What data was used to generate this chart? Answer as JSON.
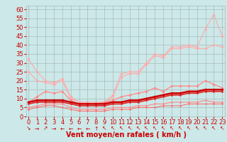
{
  "background_color": "#cce8e8",
  "grid_color": "#aabbbb",
  "xlabel": "Vent moyen/en rafales ( km/h )",
  "ylim": [
    0,
    62
  ],
  "xlim": [
    -0.3,
    23.3
  ],
  "yticks": [
    0,
    5,
    10,
    15,
    20,
    25,
    30,
    35,
    40,
    45,
    50,
    55,
    60
  ],
  "xticks": [
    0,
    1,
    2,
    3,
    4,
    5,
    6,
    7,
    8,
    9,
    10,
    11,
    12,
    13,
    14,
    15,
    16,
    17,
    18,
    19,
    20,
    21,
    22,
    23
  ],
  "series": [
    {
      "y": [
        32,
        25,
        20,
        19,
        21,
        11,
        8,
        8,
        8,
        8,
        12,
        24,
        25,
        25,
        30,
        35,
        34,
        39,
        39,
        40,
        39,
        49,
        57,
        45
      ],
      "color": "#ffaaaa",
      "lw": 0.8,
      "marker": "D",
      "ms": 1.8
    },
    {
      "y": [
        25,
        20,
        19,
        18,
        20,
        10,
        8,
        7,
        7,
        7,
        11,
        22,
        24,
        24,
        29,
        34,
        33,
        38,
        38,
        39,
        38,
        38,
        40,
        39
      ],
      "color": "#ffaaaa",
      "lw": 0.8,
      "marker": "D",
      "ms": 1.8
    },
    {
      "y": [
        8,
        11,
        14,
        13,
        14,
        9,
        7,
        7,
        7,
        8,
        9,
        11,
        12,
        13,
        14,
        16,
        14,
        17,
        17,
        17,
        17,
        20,
        18,
        16
      ],
      "color": "#ff8888",
      "lw": 0.9,
      "marker": "D",
      "ms": 1.8
    },
    {
      "y": [
        8,
        9,
        9,
        9,
        9,
        8,
        7,
        7,
        7,
        7,
        8,
        8,
        9,
        9,
        10,
        11,
        12,
        13,
        13,
        14,
        14,
        15,
        15,
        15
      ],
      "color": "#cc0000",
      "lw": 1.8,
      "marker": "D",
      "ms": 1.8
    },
    {
      "y": [
        7,
        8,
        8,
        8,
        8,
        7,
        6,
        6,
        6,
        6,
        7,
        7,
        8,
        8,
        9,
        10,
        11,
        12,
        12,
        13,
        13,
        14,
        14,
        14
      ],
      "color": "#dd2222",
      "lw": 1.2,
      "marker": "D",
      "ms": 1.5
    },
    {
      "y": [
        5,
        6,
        7,
        7,
        7,
        5,
        4,
        4,
        4,
        4,
        5,
        5,
        5,
        6,
        6,
        7,
        7,
        8,
        8,
        8,
        8,
        9,
        8,
        8
      ],
      "color": "#ff8888",
      "lw": 0.8,
      "marker": "D",
      "ms": 1.5
    },
    {
      "y": [
        4,
        5,
        6,
        6,
        5,
        4,
        3,
        3,
        3,
        3,
        4,
        4,
        4,
        5,
        5,
        5,
        6,
        6,
        6,
        7,
        7,
        7,
        7,
        7
      ],
      "color": "#ff6666",
      "lw": 0.7,
      "marker": "D",
      "ms": 1.3
    }
  ],
  "arrow_chars": [
    "↘",
    "→",
    "↗",
    "→",
    "←",
    "←",
    "←",
    "←",
    "↑",
    "↖",
    "↖",
    "↖",
    "↖",
    "↖",
    "↖",
    "↖",
    "↖",
    "↖",
    "↖",
    "↖",
    "↖",
    "↖",
    "↖",
    "↖"
  ],
  "xlabel_color": "#cc0000",
  "xlabel_fontsize": 7,
  "tick_fontsize": 6,
  "tick_color": "#cc0000",
  "arrow_color": "#cc0000"
}
